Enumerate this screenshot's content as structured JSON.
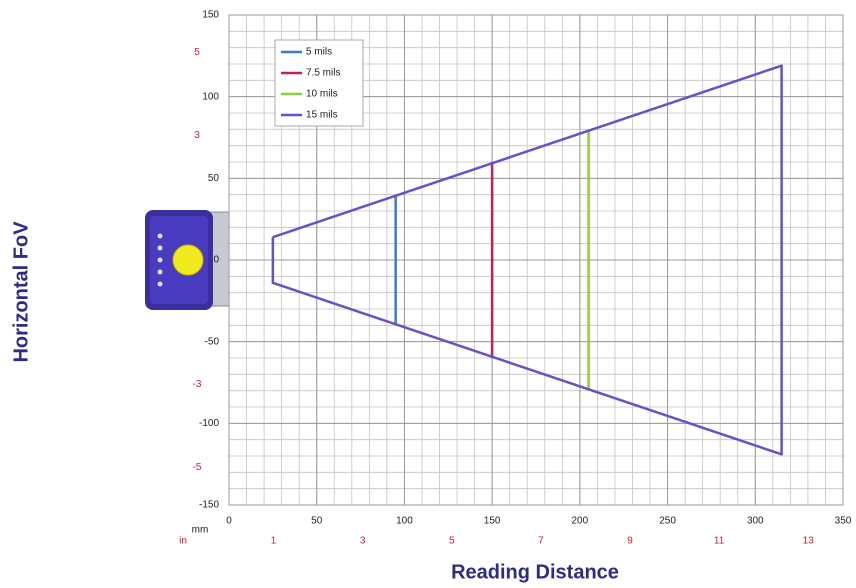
{
  "chart_data": {
    "type": "line",
    "y_label": "Horizontal FoV",
    "x_label": "Reading Distance",
    "x_unit": "mm",
    "x2_unit": "in",
    "xlim": [
      0,
      350
    ],
    "xticks": [
      0,
      50,
      100,
      150,
      200,
      250,
      300,
      350
    ],
    "ylim": [
      -150,
      150
    ],
    "yticks": [
      -150,
      -100,
      -50,
      0,
      50,
      100,
      150
    ],
    "x2lim": [
      0,
      13.78
    ],
    "x2ticks": [
      1,
      3,
      5,
      7,
      9,
      11,
      13
    ],
    "y2lim": [
      -5.906,
      5.906
    ],
    "y2ticks": [
      -5,
      -3,
      3,
      5
    ],
    "grid": true,
    "minor_grid": 10,
    "legend": "upper left",
    "series": [
      {
        "name": "5 mils",
        "color": "#3a7fc4",
        "x": [
          95,
          95
        ],
        "y": [
          39,
          -39
        ]
      },
      {
        "name": "7.5 mils",
        "color": "#c0234e",
        "x": [
          150,
          150
        ],
        "y": [
          60,
          -60
        ]
      },
      {
        "name": "10 mils",
        "color": "#8ad13c",
        "x": [
          205,
          205
        ],
        "y": [
          79,
          -79
        ]
      },
      {
        "name": "15 mils",
        "color": "#6a50c8",
        "x": [
          25,
          315,
          315,
          25,
          25
        ],
        "y": [
          14,
          119,
          -119,
          -14,
          14
        ]
      }
    ]
  }
}
